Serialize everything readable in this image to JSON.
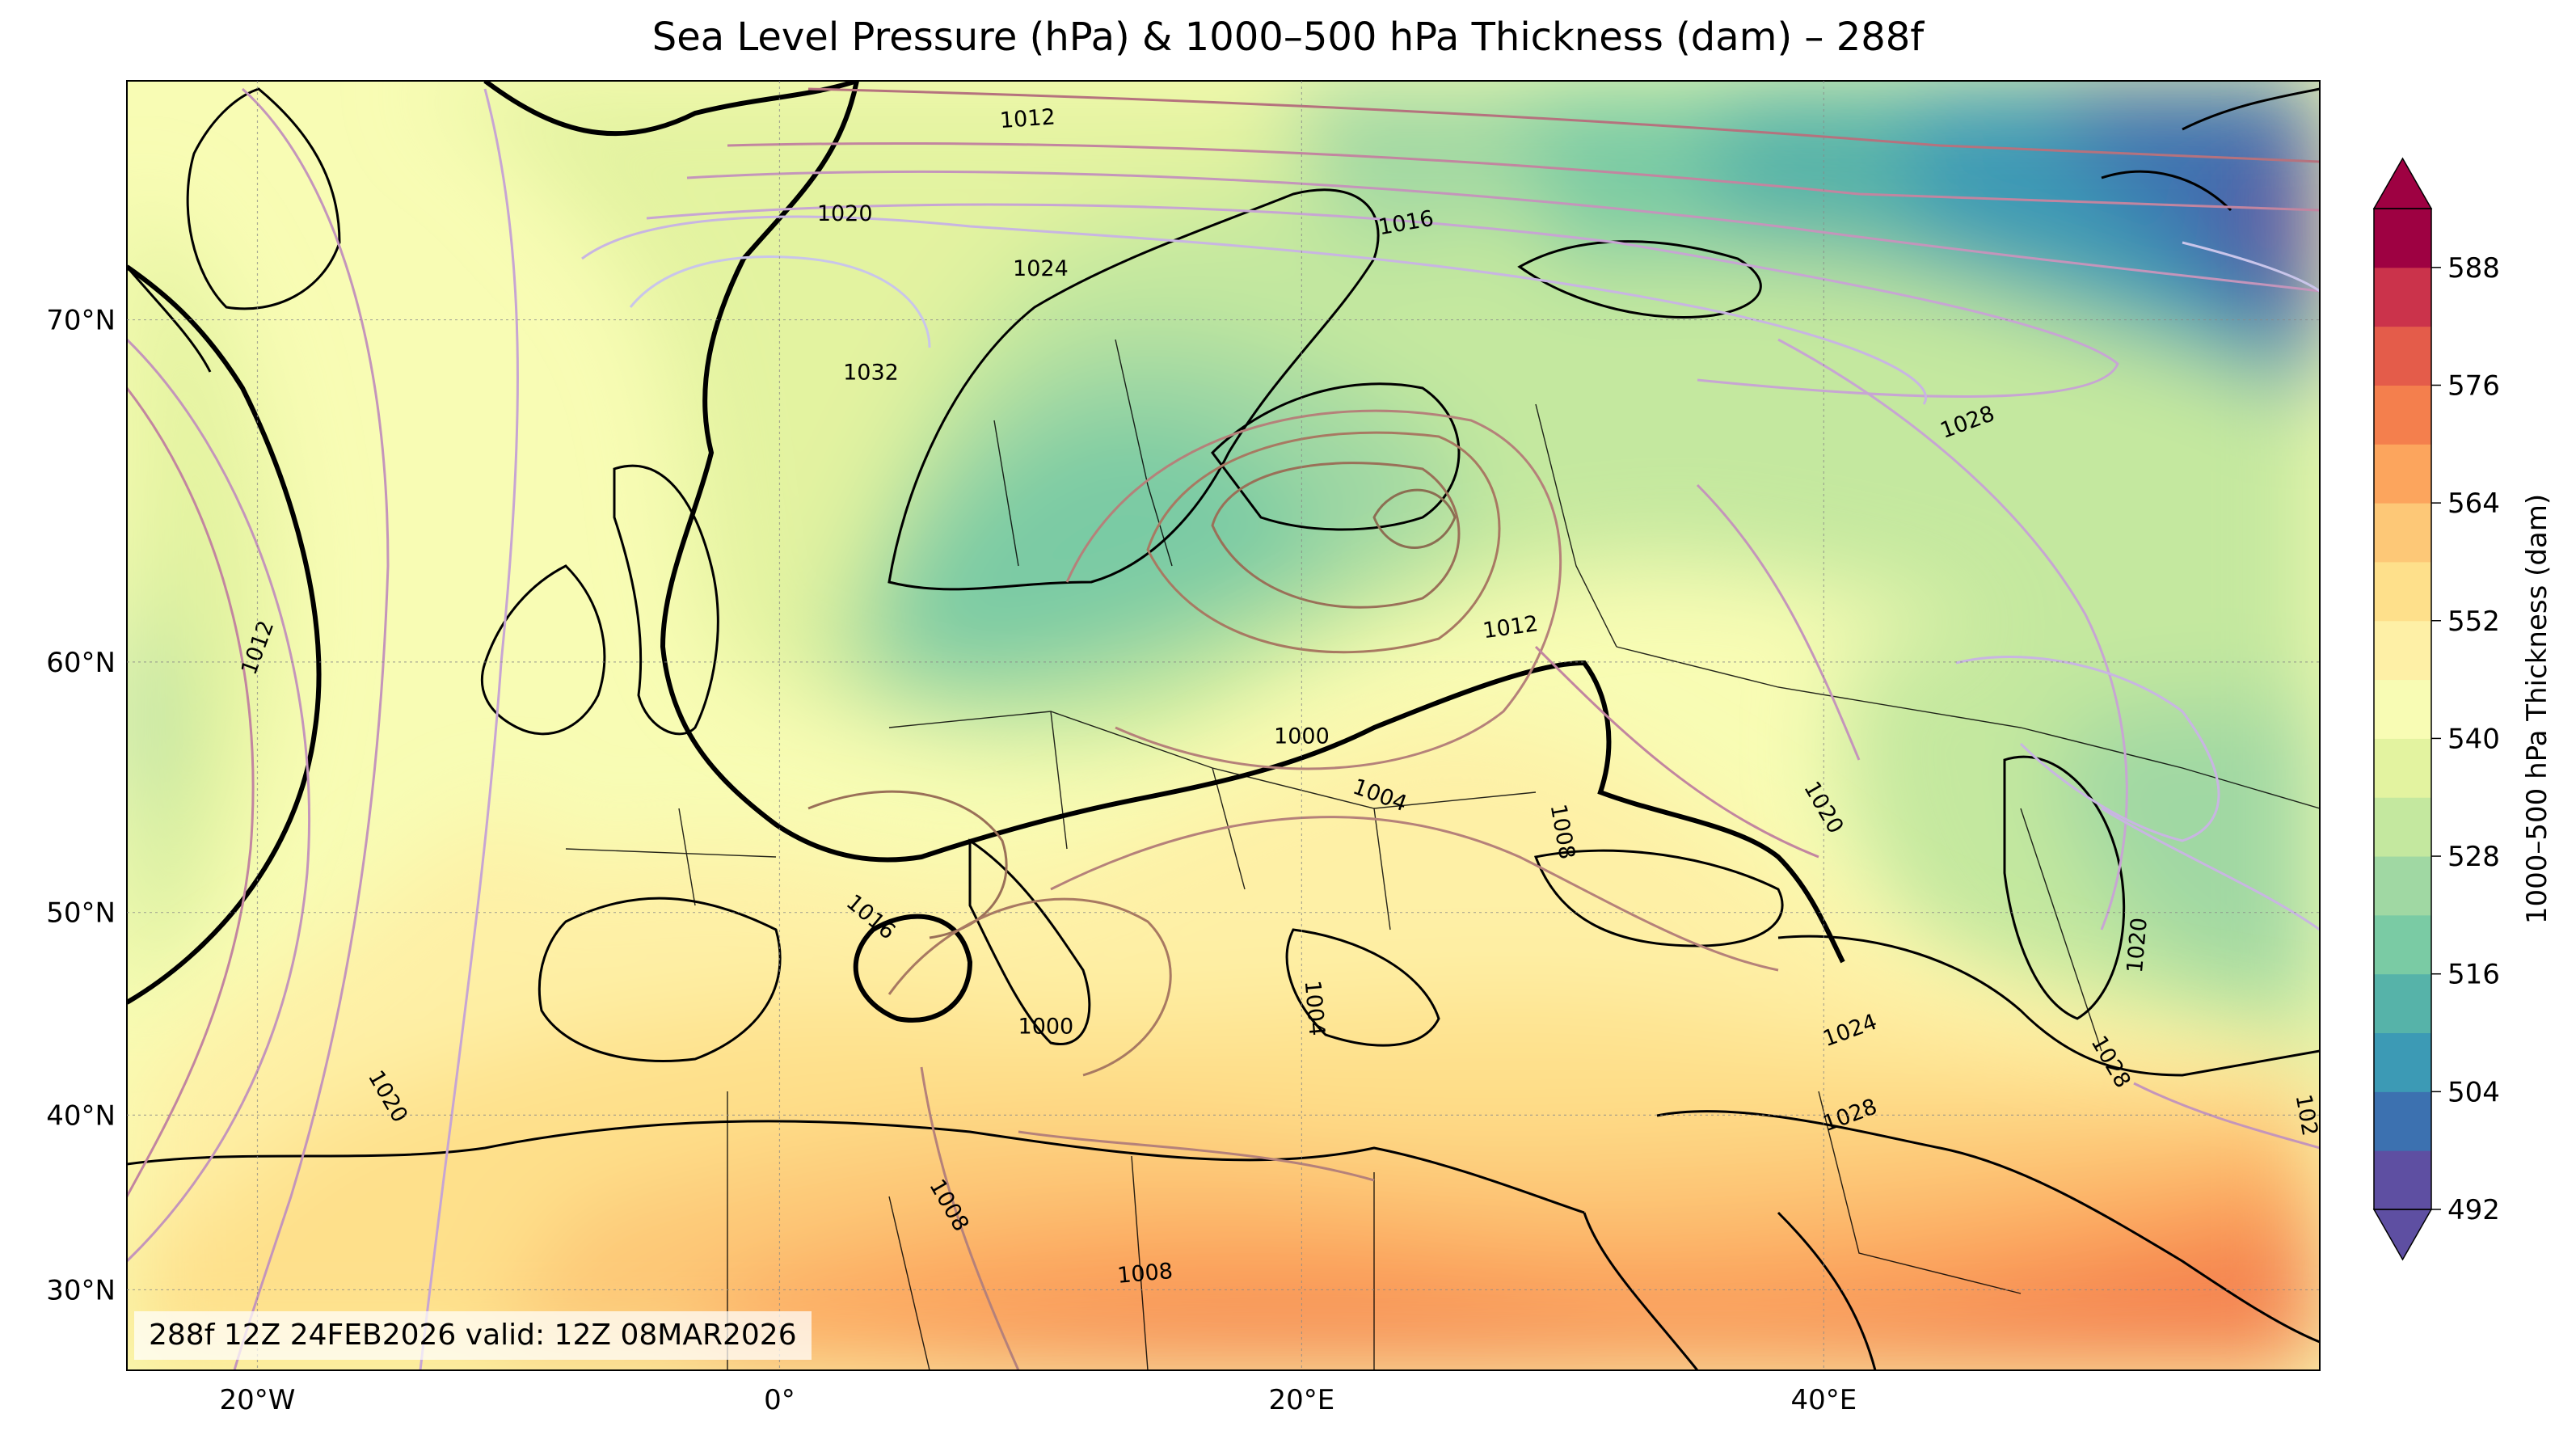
{
  "title": "Sea Level Pressure (hPa) & 1000–500 hPa Thickness (dam) – 288f",
  "stamp": "288f 12Z 24FEB2026 valid: 12Z 08MAR2026",
  "map_extent": {
    "lon": [
      -25,
      59
    ],
    "lat": [
      25,
      75
    ]
  },
  "lat_ticks": [
    {
      "value": 30,
      "label": "30°N"
    },
    {
      "value": 40,
      "label": "40°N"
    },
    {
      "value": 50,
      "label": "50°N"
    },
    {
      "value": 60,
      "label": "60°N"
    },
    {
      "value": 70,
      "label": "70°N"
    }
  ],
  "lon_ticks": [
    {
      "value": -20,
      "label": "20°W"
    },
    {
      "value": 0,
      "label": "0°"
    },
    {
      "value": 20,
      "label": "20°E"
    },
    {
      "value": 40,
      "label": "40°E"
    }
  ],
  "colorbar": {
    "label": "1000–500 hPa Thickness (dam)",
    "min": 492,
    "max": 594,
    "step": 6,
    "ticks": [
      {
        "value": 492,
        "label": "492"
      },
      {
        "value": 504,
        "label": "504"
      },
      {
        "value": 516,
        "label": "516"
      },
      {
        "value": 528,
        "label": "528"
      },
      {
        "value": 540,
        "label": "540"
      },
      {
        "value": 552,
        "label": "552"
      },
      {
        "value": 564,
        "label": "564"
      },
      {
        "value": 576,
        "label": "576"
      },
      {
        "value": 588,
        "label": "588"
      }
    ],
    "colors": [
      "#5e4fa2",
      "#3c71b0",
      "#3c9ab5",
      "#56b3a9",
      "#7acba4",
      "#a0d8a3",
      "#c4e89f",
      "#e3f3a0",
      "#f8fcb4",
      "#fef0a6",
      "#fee08b",
      "#fdc877",
      "#fca55d",
      "#f47f4d",
      "#e45c4a",
      "#cb334b",
      "#9e0142"
    ],
    "under_color": "#5e4fa2",
    "over_color": "#9e0142"
  },
  "slp_labels": [
    {
      "text": "1012",
      "lon": 9.5,
      "lat": 74.3,
      "rot": 4
    },
    {
      "text": "1020",
      "lon": 2.5,
      "lat": 72.4,
      "rot": 0
    },
    {
      "text": "1016",
      "lon": 24.0,
      "lat": 72.2,
      "rot": 10
    },
    {
      "text": "1024",
      "lon": 10.0,
      "lat": 71.2,
      "rot": 0
    },
    {
      "text": "1032",
      "lon": 3.5,
      "lat": 68.7,
      "rot": 0
    },
    {
      "text": "1028",
      "lon": 45.5,
      "lat": 67.4,
      "rot": 20
    },
    {
      "text": "1012",
      "lon": -20.0,
      "lat": 60.5,
      "rot": 70
    },
    {
      "text": "1012",
      "lon": 28.0,
      "lat": 61.2,
      "rot": 8
    },
    {
      "text": "1000",
      "lon": 20.0,
      "lat": 57.3,
      "rot": 0
    },
    {
      "text": "1004",
      "lon": 23.0,
      "lat": 55.0,
      "rot": -20
    },
    {
      "text": "1008",
      "lon": 30.0,
      "lat": 53.5,
      "rot": -80
    },
    {
      "text": "1020",
      "lon": 40.0,
      "lat": 54.5,
      "rot": -60
    },
    {
      "text": "1016",
      "lon": 3.5,
      "lat": 49.8,
      "rot": -40
    },
    {
      "text": "1004",
      "lon": 20.5,
      "lat": 45.5,
      "rot": -85
    },
    {
      "text": "1000",
      "lon": 10.2,
      "lat": 44.6,
      "rot": 0
    },
    {
      "text": "1020",
      "lon": 52.0,
      "lat": 48.5,
      "rot": 85
    },
    {
      "text": "1024",
      "lon": 41.0,
      "lat": 44.4,
      "rot": 20
    },
    {
      "text": "1028",
      "lon": 51.0,
      "lat": 42.8,
      "rot": -60
    },
    {
      "text": "1028",
      "lon": 41.0,
      "lat": 40.0,
      "rot": 20
    },
    {
      "text": "1020",
      "lon": -15.0,
      "lat": 41.0,
      "rot": -60
    },
    {
      "text": "1008",
      "lon": 6.5,
      "lat": 35.0,
      "rot": -60
    },
    {
      "text": "1008",
      "lon": 14.0,
      "lat": 31.0,
      "rot": 5
    },
    {
      "text": "102",
      "lon": 58.5,
      "lat": 40.0,
      "rot": -80
    }
  ]
}
